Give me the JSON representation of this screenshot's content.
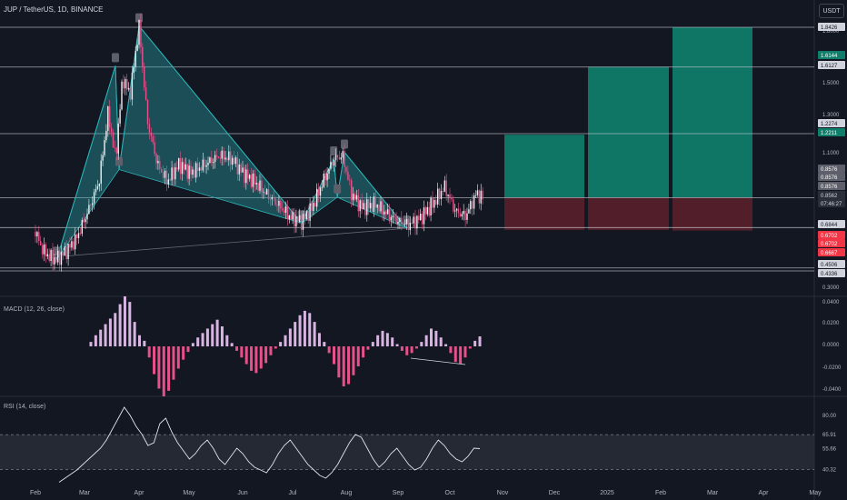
{
  "header": {
    "title": "JUP / TetherUS, 1D, BINANCE",
    "currency": "USDT"
  },
  "macd_label": "MACD (12, 26, close)",
  "rsi_label": "RSI (14, close)",
  "colors": {
    "background": "#131722",
    "candle_up": "#f0f0f0",
    "candle_down": "#e8508a",
    "pattern_fill": "#2bb5b8",
    "target_green": "#0f7f6c",
    "stop_red": "#5a1f2b",
    "hline": "#d1d4dc"
  },
  "chart_data": [
    {
      "type": "candlestick",
      "pane": "price",
      "x_ticks": [
        "Feb",
        "Mar",
        "Apr",
        "May",
        "Jun",
        "Jul",
        "Aug",
        "Sep",
        "Oct",
        "Nov",
        "Dec",
        "2025",
        "Feb",
        "Mar",
        "Apr",
        "May"
      ],
      "y_ticks": [
        "1.8000",
        "1.5000",
        "1.3000",
        "1.1000",
        "0.3000"
      ],
      "price_labels": [
        {
          "value": "1.8426",
          "kind": "line"
        },
        {
          "value": "1.6144",
          "kind": "green"
        },
        {
          "value": "1.6127",
          "kind": "line"
        },
        {
          "value": "1.2274",
          "kind": "line"
        },
        {
          "value": "1.2211",
          "kind": "green"
        },
        {
          "value": "0.8576",
          "kind": "gray"
        },
        {
          "value": "0.8576",
          "kind": "gray"
        },
        {
          "value": "0.8576",
          "kind": "gray"
        },
        {
          "value": "0.8562",
          "kind": "current"
        },
        {
          "value": "07:46:27",
          "kind": "current-sub"
        },
        {
          "value": "0.6844",
          "kind": "line"
        },
        {
          "value": "0.6702",
          "kind": "red"
        },
        {
          "value": "0.6702",
          "kind": "red"
        },
        {
          "value": "0.6667",
          "kind": "red"
        },
        {
          "value": "0.4506",
          "kind": "line"
        },
        {
          "value": "0.4336",
          "kind": "line"
        }
      ],
      "horizontal_levels": [
        1.8426,
        1.6127,
        1.2274,
        0.8576,
        0.6844,
        0.4506,
        0.4336
      ],
      "close_path": [
        [
          "Feb 01",
          0.66
        ],
        [
          "Feb 05",
          0.56
        ],
        [
          "Feb 10",
          0.51
        ],
        [
          "Feb 14",
          0.5
        ],
        [
          "Feb 20",
          0.55
        ],
        [
          "Feb 26",
          0.62
        ],
        [
          "Mar 03",
          0.78
        ],
        [
          "Mar 09",
          0.95
        ],
        [
          "Mar 14",
          1.35
        ],
        [
          "Mar 18",
          1.08
        ],
        [
          "Mar 22",
          1.55
        ],
        [
          "Mar 26",
          1.45
        ],
        [
          "Mar 31",
          1.85
        ],
        [
          "Apr 06",
          1.3
        ],
        [
          "Apr 12",
          1.05
        ],
        [
          "Apr 18",
          0.95
        ],
        [
          "Apr 25",
          1.05
        ],
        [
          "May 02",
          1.0
        ],
        [
          "May 10",
          1.05
        ],
        [
          "May 18",
          1.1
        ],
        [
          "May 25",
          1.08
        ],
        [
          "Jun 01",
          1.0
        ],
        [
          "Jun 08",
          0.95
        ],
        [
          "Jun 15",
          0.88
        ],
        [
          "Jun 22",
          0.82
        ],
        [
          "Jun 30",
          0.74
        ],
        [
          "Jul 06",
          0.72
        ],
        [
          "Jul 12",
          0.8
        ],
        [
          "Jul 18",
          0.95
        ],
        [
          "Jul 24",
          1.08
        ],
        [
          "Jul 29",
          1.1
        ],
        [
          "Aug 04",
          0.88
        ],
        [
          "Aug 10",
          0.8
        ],
        [
          "Aug 18",
          0.82
        ],
        [
          "Aug 25",
          0.76
        ],
        [
          "Sep 01",
          0.72
        ],
        [
          "Sep 07",
          0.7
        ],
        [
          "Sep 14",
          0.74
        ],
        [
          "Sep 21",
          0.82
        ],
        [
          "Sep 28",
          0.92
        ],
        [
          "Oct 04",
          0.78
        ],
        [
          "Oct 10",
          0.75
        ],
        [
          "Oct 16",
          0.88
        ],
        [
          "Oct 20",
          0.856
        ]
      ],
      "positions": [
        {
          "entry": 0.8576,
          "target": 1.2211,
          "stop": 0.6702
        },
        {
          "entry": 0.8576,
          "target": 1.6144,
          "stop": 0.6702
        },
        {
          "entry": 0.8576,
          "target": 1.8426,
          "stop": 0.6667
        }
      ]
    },
    {
      "type": "bar",
      "pane": "macd",
      "name": "MACD (12, 26, close)",
      "y_ticks": [
        "0.0400",
        "0.0200",
        "0.0000",
        "-0.0200",
        "-0.0400"
      ],
      "ylim": [
        -0.045,
        0.045
      ],
      "histogram": [
        0.004,
        0.01,
        0.015,
        0.02,
        0.025,
        0.03,
        0.038,
        0.045,
        0.04,
        0.022,
        0.01,
        0.005,
        -0.01,
        -0.025,
        -0.038,
        -0.045,
        -0.04,
        -0.03,
        -0.02,
        -0.012,
        -0.005,
        0.003,
        0.008,
        0.012,
        0.016,
        0.02,
        0.024,
        0.018,
        0.01,
        0.003,
        -0.004,
        -0.01,
        -0.016,
        -0.022,
        -0.024,
        -0.02,
        -0.015,
        -0.008,
        -0.002,
        0.004,
        0.01,
        0.016,
        0.022,
        0.028,
        0.032,
        0.03,
        0.022,
        0.012,
        0.004,
        -0.006,
        -0.016,
        -0.028,
        -0.036,
        -0.034,
        -0.026,
        -0.018,
        -0.01,
        -0.003,
        0.004,
        0.01,
        0.014,
        0.012,
        0.008,
        0.002,
        -0.004,
        -0.008,
        -0.006,
        -0.002,
        0.004,
        0.01,
        0.016,
        0.014,
        0.008,
        0.002,
        -0.006,
        -0.014,
        -0.016,
        -0.01,
        -0.002,
        0.005,
        0.009
      ]
    },
    {
      "type": "line",
      "pane": "rsi",
      "name": "RSI (14, close)",
      "y_ticks": [
        "80.00",
        "65.91",
        "55.66",
        "40.32"
      ],
      "ylim": [
        30,
        90
      ],
      "band": [
        40.32,
        65.91
      ],
      "values": [
        31,
        34,
        37,
        40,
        44,
        48,
        52,
        56,
        62,
        70,
        78,
        86,
        80,
        72,
        66,
        58,
        60,
        74,
        78,
        68,
        60,
        54,
        48,
        52,
        58,
        62,
        56,
        48,
        44,
        50,
        56,
        52,
        46,
        42,
        40,
        38,
        44,
        52,
        58,
        62,
        56,
        50,
        44,
        40,
        36,
        34,
        38,
        44,
        52,
        60,
        66,
        64,
        56,
        48,
        42,
        46,
        52,
        56,
        50,
        44,
        40,
        42,
        48,
        56,
        62,
        58,
        52,
        48,
        46,
        50,
        56,
        55.66
      ]
    }
  ]
}
